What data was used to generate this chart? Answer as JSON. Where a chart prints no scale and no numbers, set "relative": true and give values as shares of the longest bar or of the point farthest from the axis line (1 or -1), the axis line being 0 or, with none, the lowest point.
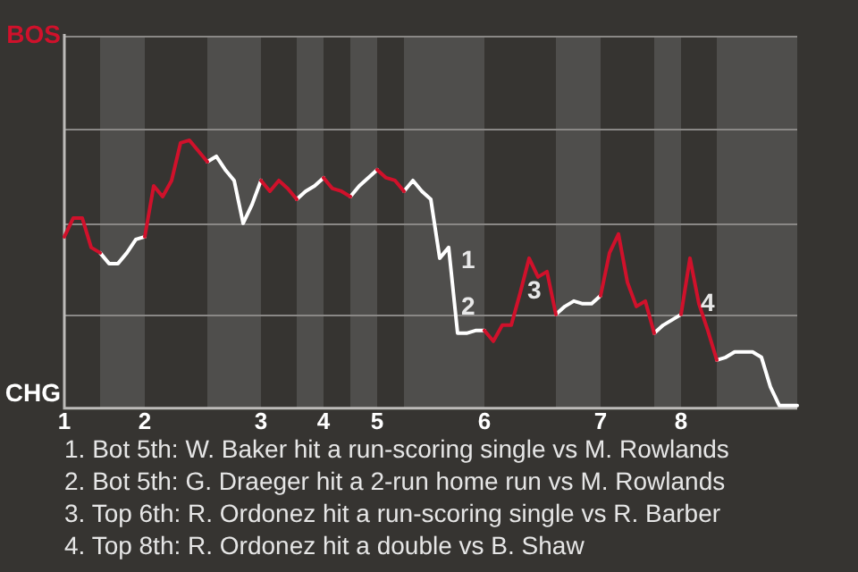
{
  "chart_data": {
    "type": "line",
    "relative": true,
    "categories": [
      "1",
      null,
      null,
      null,
      null,
      null,
      null,
      null,
      null,
      "2",
      null,
      null,
      null,
      null,
      null,
      null,
      null,
      null,
      null,
      null,
      null,
      null,
      "3",
      null,
      null,
      null,
      null,
      null,
      null,
      "4",
      null,
      null,
      null,
      null,
      null,
      "5",
      null,
      null,
      null,
      null,
      null,
      null,
      null,
      null,
      null,
      null,
      null,
      "6",
      null,
      null,
      null,
      null,
      null,
      null,
      null,
      null,
      null,
      null,
      null,
      null,
      "7",
      null,
      null,
      null,
      null,
      null,
      null,
      null,
      null,
      "8",
      null,
      null,
      null,
      null,
      null,
      null,
      null,
      null,
      null,
      null,
      null,
      null,
      null
    ],
    "series": [
      {
        "color": "#d0112b",
        "values": [
          0.64,
          0.71,
          0.71,
          0.6,
          0.58,
          null,
          null,
          null,
          null,
          0.64,
          0.83,
          0.79,
          0.85,
          0.99,
          1,
          0.96,
          0.92,
          null,
          null,
          null,
          null,
          null,
          0.85,
          0.81,
          0.85,
          0.82,
          0.78,
          null,
          null,
          0.86,
          0.82,
          0.81,
          0.79,
          null,
          null,
          0.89,
          0.86,
          0.85,
          0.81,
          null,
          null,
          null,
          null,
          null,
          null,
          null,
          null,
          0.29,
          0.25,
          0.31,
          0.31,
          0.43,
          0.56,
          0.49,
          0.51,
          0.35,
          null,
          null,
          null,
          null,
          0.42,
          0.58,
          0.65,
          0.47,
          0.38,
          0.4,
          0.28,
          null,
          null,
          0.35,
          0.56,
          0.39,
          0.29,
          0.18,
          null,
          null,
          null,
          null,
          null,
          null,
          null,
          null,
          null
        ]
      },
      {
        "color": "#ffffff",
        "values": [
          null,
          null,
          null,
          null,
          0.58,
          0.54,
          0.54,
          0.58,
          0.63,
          0.64,
          null,
          null,
          null,
          null,
          null,
          null,
          0.92,
          0.94,
          0.89,
          0.85,
          0.69,
          0.76,
          0.85,
          null,
          null,
          null,
          0.78,
          0.81,
          0.83,
          0.86,
          null,
          null,
          0.79,
          0.83,
          0.86,
          0.89,
          null,
          null,
          0.81,
          0.85,
          0.81,
          0.78,
          0.56,
          0.6,
          0.28,
          0.28,
          0.29,
          0.29,
          null,
          null,
          null,
          null,
          null,
          null,
          null,
          0.35,
          0.38,
          0.4,
          0.39,
          0.39,
          0.42,
          null,
          null,
          null,
          null,
          null,
          0.28,
          0.31,
          0.33,
          0.35,
          null,
          null,
          null,
          0.18,
          0.19,
          0.21,
          0.21,
          0.21,
          0.19,
          0.08,
          0.01,
          0.01,
          0.01
        ]
      }
    ],
    "ref_lines": [
      {
        "axis": "y",
        "value": 0.35,
        "color": "#8a8886"
      },
      {
        "axis": "y",
        "value": 0.69,
        "color": "#8a8886"
      },
      {
        "axis": "y",
        "value": 1.04,
        "color": "#8a8886"
      },
      {
        "axis": "y",
        "value": 1.39,
        "color": "#8a8886"
      }
    ],
    "marker": "none",
    "line_style": "solid",
    "annotations": [
      "1",
      "2",
      "3",
      "4",
      "BOS",
      "CHG",
      "1. Bot 5th: W. Baker hit a run-scoring single vs M. Rowlands",
      "2. Bot 5th: G. Draeger hit a 2-run home run vs M. Rowlands",
      "3. Top 6th: R. Ordonez hit a run-scoring single vs R. Barber",
      "4. Top 8th: R. Ordonez hit a double vs B. Shaw"
    ]
  }
}
